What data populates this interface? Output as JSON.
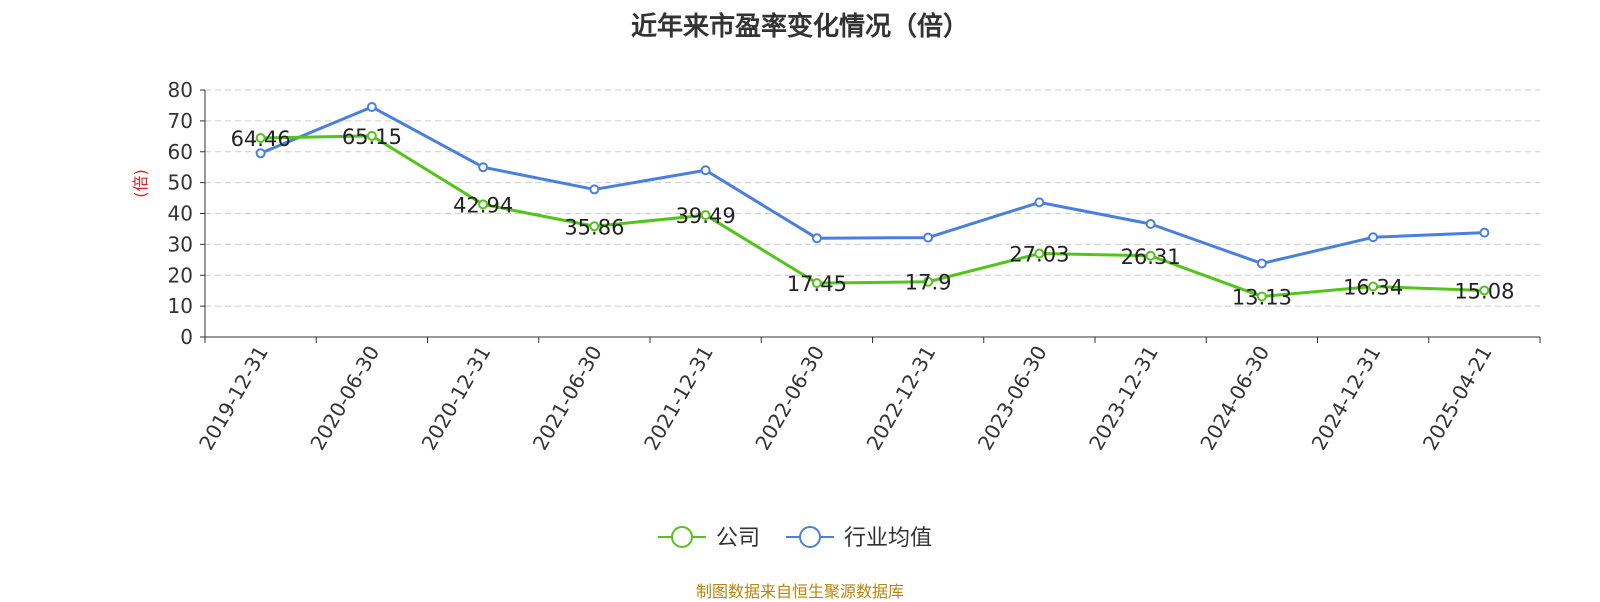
{
  "chart_data": {
    "type": "line",
    "title": "近年来市盈率变化情况（倍）",
    "ylabel": "(倍)",
    "xlabel": "",
    "ylim": [
      0,
      80
    ],
    "yticks": [
      0,
      10,
      20,
      30,
      40,
      50,
      60,
      70,
      80
    ],
    "grid": true,
    "legend_position": "bottom",
    "categories": [
      "2019-12-31",
      "2020-06-30",
      "2020-12-31",
      "2021-06-30",
      "2021-12-31",
      "2022-06-30",
      "2022-12-31",
      "2023-06-30",
      "2023-12-31",
      "2024-06-30",
      "2024-12-31",
      "2025-04-21"
    ],
    "series": [
      {
        "name": "公司",
        "color": "#52c41a",
        "labeled": true,
        "values": [
          64.46,
          65.15,
          42.94,
          35.86,
          39.49,
          17.45,
          17.9,
          27.03,
          26.31,
          13.13,
          16.34,
          15.08
        ]
      },
      {
        "name": "行业均值",
        "color": "#4a7fe0",
        "labeled": false,
        "values": [
          59.5,
          74.5,
          55,
          47.8,
          54,
          32,
          32.2,
          43.6,
          36.6,
          23.8,
          32.3,
          33.8
        ]
      }
    ]
  },
  "source": "制图数据来自恒生聚源数据库"
}
